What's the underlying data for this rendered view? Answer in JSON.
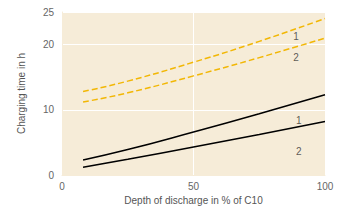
{
  "chart_data": {
    "type": "line",
    "x_label": "Depth of discharge in % of C10",
    "y_label": "Charging time in h",
    "xlim": [
      0,
      100
    ],
    "xticks": [
      0,
      50,
      100
    ],
    "ylim": [
      0,
      25
    ],
    "yticks": [
      0,
      10,
      20,
      25
    ],
    "grid": true,
    "series": [
      {
        "name": "1",
        "color": "#f2b705",
        "line_style": "dashed",
        "x": [
          8,
          25,
          50,
          75,
          100
        ],
        "values": [
          12.8,
          14.4,
          17.3,
          20.5,
          24
        ]
      },
      {
        "name": "2",
        "color": "#f2b705",
        "line_style": "dashed",
        "x": [
          8,
          25,
          50,
          75,
          100
        ],
        "values": [
          11.2,
          12.6,
          15.2,
          18,
          21
        ]
      },
      {
        "name": "1",
        "color": "#000000",
        "line_style": "solid",
        "x": [
          8,
          25,
          50,
          75,
          100
        ],
        "values": [
          2.3,
          3.9,
          6.6,
          9.4,
          12.3
        ]
      },
      {
        "name": "2",
        "color": "#000000",
        "line_style": "solid",
        "x": [
          8,
          25,
          50,
          75,
          100
        ],
        "values": [
          1.2,
          2.4,
          4.3,
          6.2,
          8.2
        ]
      }
    ],
    "annotations": [
      {
        "text": "1",
        "x": 89,
        "y": 21.3
      },
      {
        "text": "2",
        "x": 89,
        "y": 18
      },
      {
        "text": "1",
        "x": 90,
        "y": 8.4
      },
      {
        "text": "2",
        "x": 90,
        "y": 3.6
      }
    ]
  }
}
